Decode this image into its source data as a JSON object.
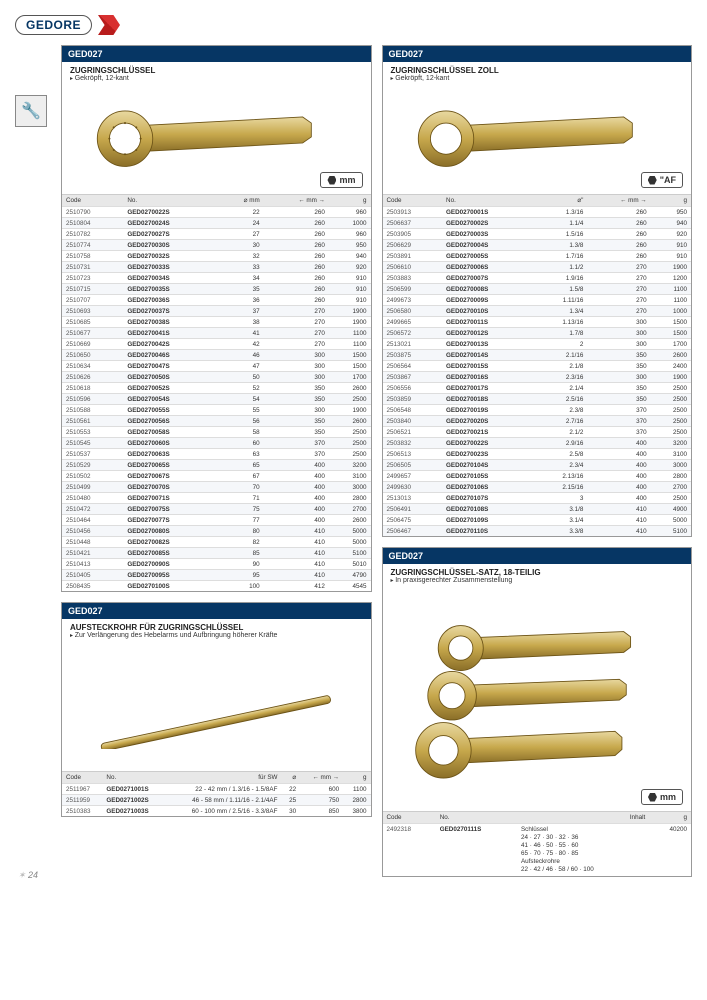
{
  "logo": "GEDORE",
  "page_number": "24",
  "unit_mm": "mm",
  "unit_af": "\"AF",
  "cards": {
    "ring_mm": {
      "header": "GED027",
      "title": "ZUGRINGSCHLÜSSEL",
      "desc": "Gekröpft, 12-kant",
      "cols": [
        "Code",
        "No.",
        "⌀ mm",
        "← mm →",
        "g"
      ],
      "rows": [
        [
          "2510790",
          "GED0270022S",
          "22",
          "260",
          "960"
        ],
        [
          "2510804",
          "GED0270024S",
          "24",
          "260",
          "1000"
        ],
        [
          "2510782",
          "GED0270027S",
          "27",
          "260",
          "960"
        ],
        [
          "2510774",
          "GED0270030S",
          "30",
          "260",
          "950"
        ],
        [
          "2510758",
          "GED0270032S",
          "32",
          "260",
          "940"
        ],
        [
          "2510731",
          "GED0270033S",
          "33",
          "260",
          "920"
        ],
        [
          "2510723",
          "GED0270034S",
          "34",
          "260",
          "910"
        ],
        [
          "2510715",
          "GED0270035S",
          "35",
          "260",
          "910"
        ],
        [
          "2510707",
          "GED0270036S",
          "36",
          "260",
          "910"
        ],
        [
          "2510693",
          "GED0270037S",
          "37",
          "270",
          "1900"
        ],
        [
          "2510685",
          "GED0270038S",
          "38",
          "270",
          "1900"
        ],
        [
          "2510677",
          "GED0270041S",
          "41",
          "270",
          "1100"
        ],
        [
          "2510669",
          "GED0270042S",
          "42",
          "270",
          "1100"
        ],
        [
          "2510650",
          "GED0270046S",
          "46",
          "300",
          "1500"
        ],
        [
          "2510634",
          "GED0270047S",
          "47",
          "300",
          "1500"
        ],
        [
          "2510626",
          "GED0270050S",
          "50",
          "300",
          "1700"
        ],
        [
          "2510618",
          "GED0270052S",
          "52",
          "350",
          "2600"
        ],
        [
          "2510596",
          "GED0270054S",
          "54",
          "350",
          "2500"
        ],
        [
          "2510588",
          "GED0270055S",
          "55",
          "300",
          "1900"
        ],
        [
          "2510561",
          "GED0270056S",
          "56",
          "350",
          "2600"
        ],
        [
          "2510553",
          "GED0270058S",
          "58",
          "350",
          "2500"
        ],
        [
          "2510545",
          "GED0270060S",
          "60",
          "370",
          "2500"
        ],
        [
          "2510537",
          "GED0270063S",
          "63",
          "370",
          "2500"
        ],
        [
          "2510529",
          "GED0270065S",
          "65",
          "400",
          "3200"
        ],
        [
          "2510502",
          "GED0270067S",
          "67",
          "400",
          "3100"
        ],
        [
          "2510499",
          "GED0270070S",
          "70",
          "400",
          "3000"
        ],
        [
          "2510480",
          "GED0270071S",
          "71",
          "400",
          "2800"
        ],
        [
          "2510472",
          "GED0270075S",
          "75",
          "400",
          "2700"
        ],
        [
          "2510464",
          "GED0270077S",
          "77",
          "400",
          "2600"
        ],
        [
          "2510456",
          "GED0270080S",
          "80",
          "410",
          "5000"
        ],
        [
          "2510448",
          "GED0270082S",
          "82",
          "410",
          "5000"
        ],
        [
          "2510421",
          "GED0270085S",
          "85",
          "410",
          "5100"
        ],
        [
          "2510413",
          "GED0270090S",
          "90",
          "410",
          "5010"
        ],
        [
          "2510405",
          "GED0270095S",
          "95",
          "410",
          "4790"
        ],
        [
          "2508435",
          "GED0270100S",
          "100",
          "412",
          "4545"
        ]
      ]
    },
    "ring_af": {
      "header": "GED027",
      "title": "ZUGRINGSCHLÜSSEL ZOLL",
      "desc": "Gekröpft, 12-kant",
      "cols": [
        "Code",
        "No.",
        "⌀\"",
        "← mm →",
        "g"
      ],
      "rows": [
        [
          "2503913",
          "GED0270001S",
          "1.3/16",
          "260",
          "950"
        ],
        [
          "2506637",
          "GED0270002S",
          "1.1/4",
          "260",
          "940"
        ],
        [
          "2503905",
          "GED0270003S",
          "1.5/16",
          "260",
          "920"
        ],
        [
          "2506629",
          "GED0270004S",
          "1.3/8",
          "260",
          "910"
        ],
        [
          "2503891",
          "GED0270005S",
          "1.7/16",
          "260",
          "910"
        ],
        [
          "2506610",
          "GED0270006S",
          "1.1/2",
          "270",
          "1900"
        ],
        [
          "2503883",
          "GED0270007S",
          "1.9/16",
          "270",
          "1200"
        ],
        [
          "2506599",
          "GED0270008S",
          "1.5/8",
          "270",
          "1100"
        ],
        [
          "2499673",
          "GED0270009S",
          "1.11/16",
          "270",
          "1100"
        ],
        [
          "2506580",
          "GED0270010S",
          "1.3/4",
          "270",
          "1000"
        ],
        [
          "2499665",
          "GED0270011S",
          "1.13/16",
          "300",
          "1500"
        ],
        [
          "2506572",
          "GED0270012S",
          "1.7/8",
          "300",
          "1500"
        ],
        [
          "2513021",
          "GED0270013S",
          "2",
          "300",
          "1700"
        ],
        [
          "2503875",
          "GED0270014S",
          "2.1/16",
          "350",
          "2600"
        ],
        [
          "2506564",
          "GED0270015S",
          "2.1/8",
          "350",
          "2400"
        ],
        [
          "2503867",
          "GED0270016S",
          "2.3/16",
          "300",
          "1900"
        ],
        [
          "2506556",
          "GED0270017S",
          "2.1/4",
          "350",
          "2500"
        ],
        [
          "2503859",
          "GED0270018S",
          "2.5/16",
          "350",
          "2500"
        ],
        [
          "2506548",
          "GED0270019S",
          "2.3/8",
          "370",
          "2500"
        ],
        [
          "2503840",
          "GED0270020S",
          "2.7/16",
          "370",
          "2500"
        ],
        [
          "2506521",
          "GED0270021S",
          "2.1/2",
          "370",
          "2500"
        ],
        [
          "2503832",
          "GED0270022S",
          "2.9/16",
          "400",
          "3200"
        ],
        [
          "2506513",
          "GED0270023S",
          "2.5/8",
          "400",
          "3100"
        ],
        [
          "2506505",
          "GED0270104S",
          "2.3/4",
          "400",
          "3000"
        ],
        [
          "2499657",
          "GED0270105S",
          "2.13/16",
          "400",
          "2800"
        ],
        [
          "2499630",
          "GED0270106S",
          "2.15/16",
          "400",
          "2700"
        ],
        [
          "2513013",
          "GED0270107S",
          "3",
          "400",
          "2500"
        ],
        [
          "2506491",
          "GED0270108S",
          "3.1/8",
          "410",
          "4900"
        ],
        [
          "2506475",
          "GED0270109S",
          "3.1/4",
          "410",
          "5000"
        ],
        [
          "2506467",
          "GED0270110S",
          "3.3/8",
          "410",
          "5100"
        ]
      ]
    },
    "rod": {
      "header": "GED027",
      "title": "AUFSTECKROHR FÜR ZUGRINGSCHLÜSSEL",
      "desc": "Zur Verlängerung des Hebelarms und Aufbringung höherer Kräfte",
      "cols": [
        "Code",
        "No.",
        "für SW",
        "⌀",
        "← mm →",
        "g"
      ],
      "rows": [
        [
          "2511967",
          "GED0271001S",
          "22 - 42 mm / 1.3/16 - 1.5/8AF",
          "22",
          "600",
          "1100"
        ],
        [
          "2511959",
          "GED0271002S",
          "46 - 58 mm / 1.11/16 - 2.1/4AF",
          "25",
          "750",
          "2800"
        ],
        [
          "2510383",
          "GED0271003S",
          "60 - 100 mm / 2.5/16 - 3.3/8AF",
          "30",
          "850",
          "3800"
        ]
      ]
    },
    "set": {
      "header": "GED027",
      "title": "ZUGRINGSCHLÜSSEL-SATZ, 18-TEILIG",
      "desc": "In praxisgerechter Zusammenstellung",
      "cols": [
        "Code",
        "No.",
        "Inhalt",
        "g"
      ],
      "rows": [
        [
          "2492318",
          "GED0270111S",
          "Schlüssel\n24 · 27 · 30 · 32 · 36\n41 · 46 · 50 · 55 · 60\n65 · 70 · 75 · 80 · 85\nAufsteckrohre\n22 · 42 / 46 · 58 / 60 · 100",
          "40200"
        ]
      ]
    }
  }
}
